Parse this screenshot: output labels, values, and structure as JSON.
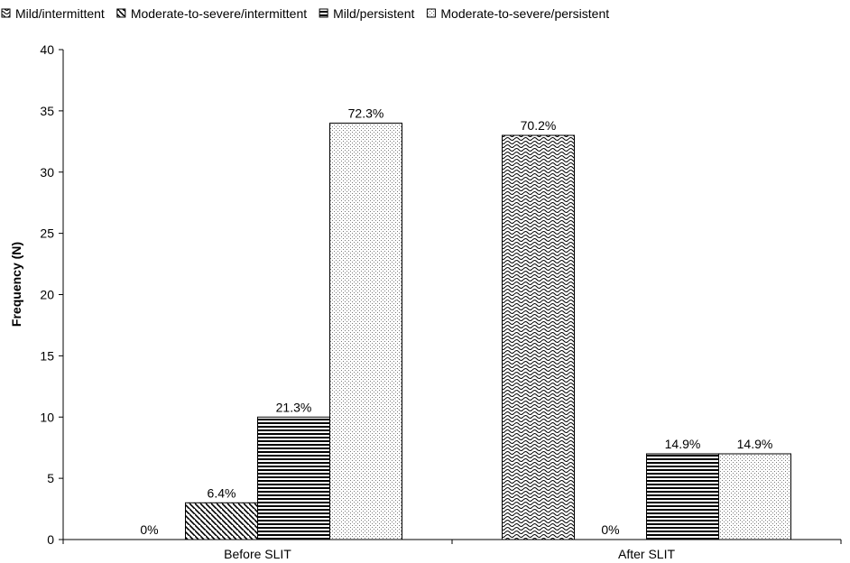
{
  "chart_data": {
    "type": "bar",
    "title": "",
    "xlabel": "",
    "ylabel": "Frequency (N)",
    "ylim": [
      0,
      40
    ],
    "yticks": [
      "0",
      "5",
      "10",
      "15",
      "20",
      "25",
      "30",
      "35",
      "40"
    ],
    "categories": [
      "Before SLIT",
      "After SLIT"
    ],
    "legend_position": "top",
    "grid": false,
    "series": [
      {
        "name": "Mild/intermittent",
        "pattern": "waves",
        "values": [
          0,
          33
        ],
        "labels": [
          "0%",
          "70.2%"
        ]
      },
      {
        "name": "Moderate-to-severe/intermittent",
        "pattern": "diagonal",
        "values": [
          3,
          0
        ],
        "labels": [
          "6.4%",
          "0%"
        ]
      },
      {
        "name": "Mild/persistent",
        "pattern": "horizontal",
        "values": [
          10,
          7
        ],
        "labels": [
          "21.3%",
          "14.9%"
        ]
      },
      {
        "name": "Moderate-to-severe/persistent",
        "pattern": "dots",
        "values": [
          34,
          7
        ],
        "labels": [
          "72.3%",
          "14.9%"
        ]
      }
    ]
  }
}
